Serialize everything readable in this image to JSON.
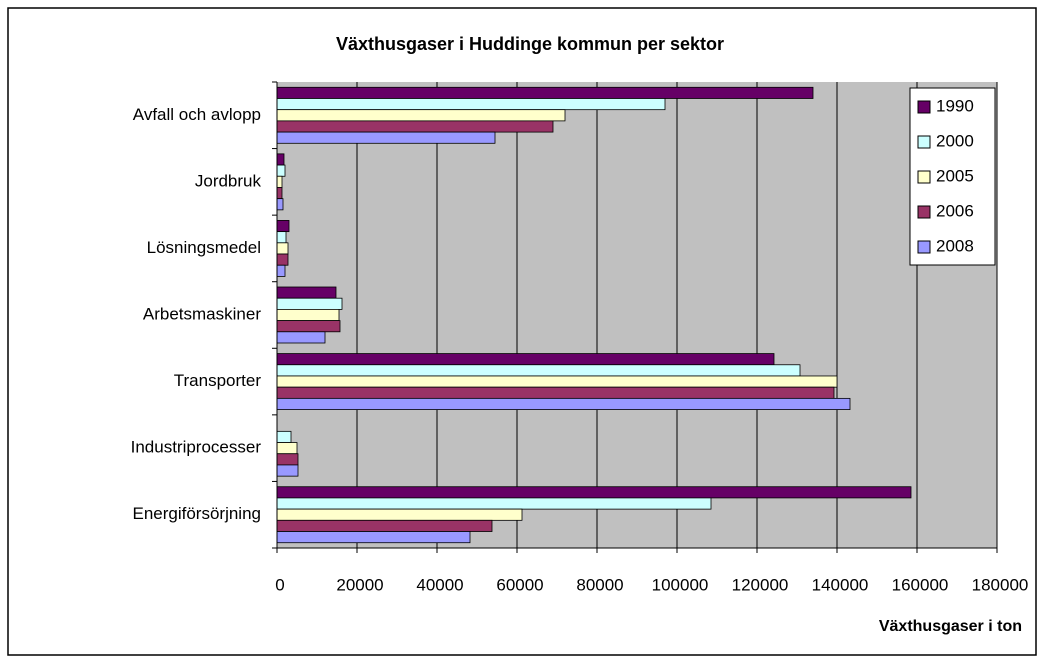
{
  "chart_data": {
    "type": "hbar",
    "title": "Växthusgaser i Huddinge kommun per sektor",
    "x_label": "Växthusgaser i ton",
    "categories": [
      "Avfall och avlopp",
      "Jordbruk",
      "Lösningsmedel",
      "Arbetsmaskiner",
      "Transporter",
      "Industriprocesser",
      "Energiförsörjning"
    ],
    "series": [
      {
        "name": "1990",
        "color": "#660066",
        "values": [
          134000,
          1750,
          3000,
          14750,
          124250,
          0,
          158500
        ]
      },
      {
        "name": "2000",
        "color": "#ccffff",
        "values": [
          97000,
          2000,
          2250,
          16250,
          130750,
          3500,
          108500
        ]
      },
      {
        "name": "2005",
        "color": "#ffffcc",
        "values": [
          72000,
          1250,
          2750,
          15500,
          140000,
          5000,
          61250
        ]
      },
      {
        "name": "2006",
        "color": "#993366",
        "values": [
          69000,
          1250,
          2750,
          15750,
          139250,
          5250,
          53750
        ]
      },
      {
        "name": "2008",
        "color": "#9999ff",
        "values": [
          54500,
          1500,
          2000,
          12000,
          143250,
          5250,
          48250
        ]
      }
    ],
    "xlim": [
      0,
      180000
    ],
    "xticks": [
      0,
      20000,
      40000,
      60000,
      80000,
      100000,
      120000,
      140000,
      160000,
      180000
    ],
    "grid": true,
    "legend": "upper right"
  }
}
